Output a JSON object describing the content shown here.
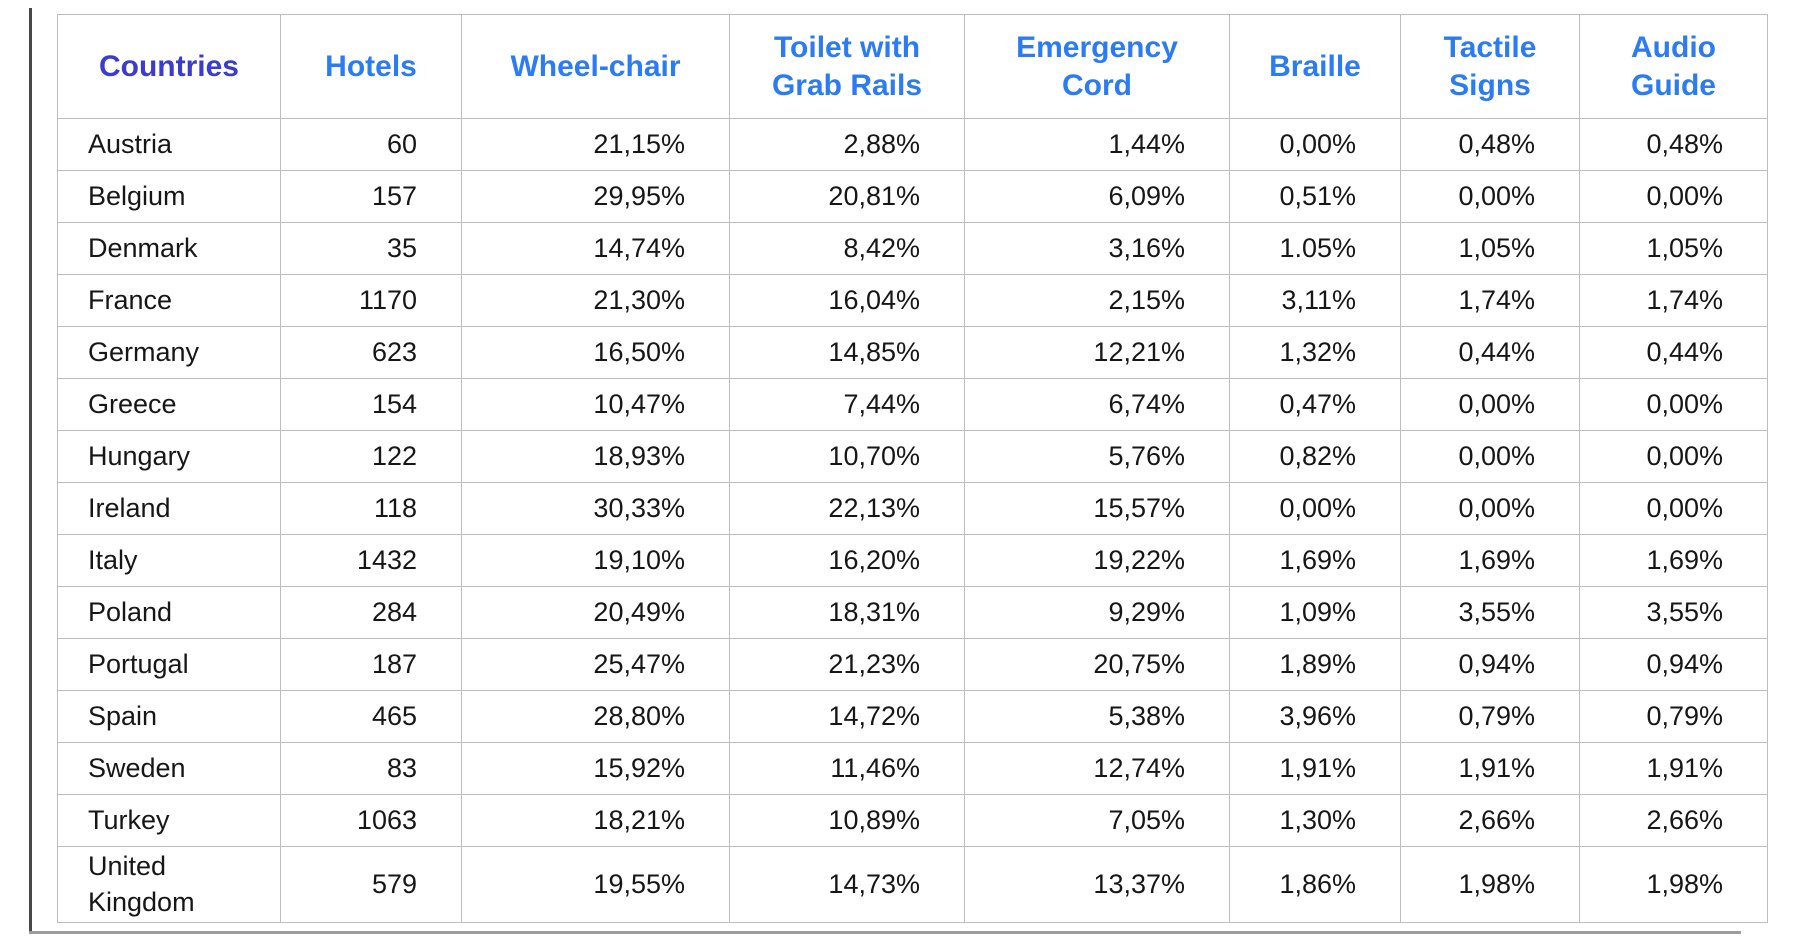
{
  "colors": {
    "countries_header_text": "#3a3ccf",
    "metric_header_text": "#2b7bf5",
    "body_text": "#161616",
    "grid_line": "#bdbdbd",
    "frame_vertical_line": "#474747",
    "frame_bottom_line": "#9c9c9c"
  },
  "chart_data": {
    "type": "table",
    "title": "",
    "columns": [
      "Countries",
      "Hotels",
      "Wheel-chair",
      "Toilet with Grab Rails",
      "Emergency Cord",
      "Braille",
      "Tactile Signs",
      "Audio Guide"
    ],
    "rows": [
      {
        "country": "Austria",
        "hotels": "60",
        "wheelchair": "21,15%",
        "toilet": "2,88%",
        "emergency": "1,44%",
        "braille": "0,00%",
        "tactile": "0,48%",
        "audio": "0,48%"
      },
      {
        "country": "Belgium",
        "hotels": "157",
        "wheelchair": "29,95%",
        "toilet": "20,81%",
        "emergency": "6,09%",
        "braille": "0,51%",
        "tactile": "0,00%",
        "audio": "0,00%"
      },
      {
        "country": "Denmark",
        "hotels": "35",
        "wheelchair": "14,74%",
        "toilet": "8,42%",
        "emergency": "3,16%",
        "braille": "1.05%",
        "tactile": "1,05%",
        "audio": "1,05%"
      },
      {
        "country": "France",
        "hotels": "1170",
        "wheelchair": "21,30%",
        "toilet": "16,04%",
        "emergency": "2,15%",
        "braille": "3,11%",
        "tactile": "1,74%",
        "audio": "1,74%"
      },
      {
        "country": "Germany",
        "hotels": "623",
        "wheelchair": "16,50%",
        "toilet": "14,85%",
        "emergency": "12,21%",
        "braille": "1,32%",
        "tactile": "0,44%",
        "audio": "0,44%"
      },
      {
        "country": "Greece",
        "hotels": "154",
        "wheelchair": "10,47%",
        "toilet": "7,44%",
        "emergency": "6,74%",
        "braille": "0,47%",
        "tactile": "0,00%",
        "audio": "0,00%"
      },
      {
        "country": "Hungary",
        "hotels": "122",
        "wheelchair": "18,93%",
        "toilet": "10,70%",
        "emergency": "5,76%",
        "braille": "0,82%",
        "tactile": "0,00%",
        "audio": "0,00%"
      },
      {
        "country": "Ireland",
        "hotels": "118",
        "wheelchair": "30,33%",
        "toilet": "22,13%",
        "emergency": "15,57%",
        "braille": "0,00%",
        "tactile": "0,00%",
        "audio": "0,00%"
      },
      {
        "country": "Italy",
        "hotels": "1432",
        "wheelchair": "19,10%",
        "toilet": "16,20%",
        "emergency": "19,22%",
        "braille": "1,69%",
        "tactile": "1,69%",
        "audio": "1,69%"
      },
      {
        "country": "Poland",
        "hotels": "284",
        "wheelchair": "20,49%",
        "toilet": "18,31%",
        "emergency": "9,29%",
        "braille": "1,09%",
        "tactile": "3,55%",
        "audio": "3,55%"
      },
      {
        "country": "Portugal",
        "hotels": "187",
        "wheelchair": "25,47%",
        "toilet": "21,23%",
        "emergency": "20,75%",
        "braille": "1,89%",
        "tactile": "0,94%",
        "audio": "0,94%"
      },
      {
        "country": "Spain",
        "hotels": "465",
        "wheelchair": "28,80%",
        "toilet": "14,72%",
        "emergency": "5,38%",
        "braille": "3,96%",
        "tactile": "0,79%",
        "audio": "0,79%"
      },
      {
        "country": "Sweden",
        "hotels": "83",
        "wheelchair": "15,92%",
        "toilet": "11,46%",
        "emergency": "12,74%",
        "braille": "1,91%",
        "tactile": "1,91%",
        "audio": "1,91%"
      },
      {
        "country": "Turkey",
        "hotels": "1063",
        "wheelchair": "18,21%",
        "toilet": "10,89%",
        "emergency": "7,05%",
        "braille": "1,30%",
        "tactile": "2,66%",
        "audio": "2,66%"
      },
      {
        "country": "United Kingdom",
        "hotels": "579",
        "wheelchair": "19,55%",
        "toilet": "14,73%",
        "emergency": "13,37%",
        "braille": "1,86%",
        "tactile": "1,98%",
        "audio": "1,98%"
      }
    ]
  }
}
